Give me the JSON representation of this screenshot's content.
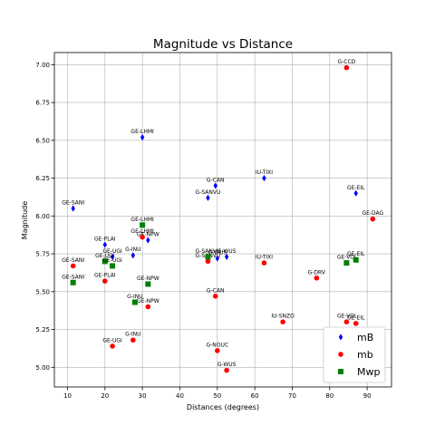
{
  "chart_data": {
    "type": "scatter",
    "title": "Magnitude vs Distance",
    "xlabel": "Distances (degrees)",
    "ylabel": "Magnitude",
    "xlim": [
      6.5,
      96.5
    ],
    "ylim": [
      4.87,
      7.08
    ],
    "xticks": [
      10,
      20,
      30,
      40,
      50,
      60,
      70,
      80,
      90
    ],
    "yticks": [
      5.0,
      5.25,
      5.5,
      5.75,
      6.0,
      6.25,
      6.5,
      6.75,
      7.0
    ],
    "xtick_labels": [
      "10",
      "20",
      "30",
      "40",
      "50",
      "60",
      "70",
      "80",
      "90"
    ],
    "ytick_labels": [
      "5.00",
      "5.25",
      "5.50",
      "5.75",
      "6.00",
      "6.25",
      "6.50",
      "6.75",
      "7.00"
    ],
    "grid": true,
    "legend_position": "bottom-right",
    "series": [
      {
        "name": "mB",
        "color": "#0000ff",
        "marker": "diamond",
        "points": [
          {
            "x": 30.0,
            "y": 6.52,
            "label": "GE-LHMI"
          },
          {
            "x": 62.5,
            "y": 6.25,
            "label": "IU-TIXI"
          },
          {
            "x": 49.5,
            "y": 6.2,
            "label": "G-CAN"
          },
          {
            "x": 47.5,
            "y": 6.12,
            "label": "G-SANVU"
          },
          {
            "x": 87.0,
            "y": 6.15,
            "label": "GE-EIL"
          },
          {
            "x": 11.5,
            "y": 6.05,
            "label": "GE-SANI"
          },
          {
            "x": 31.5,
            "y": 5.84,
            "label": "GE-NPW"
          },
          {
            "x": 20.0,
            "y": 5.81,
            "label": "GE-PLAI"
          },
          {
            "x": 22.0,
            "y": 5.73,
            "label": "GE-UGI"
          },
          {
            "x": 27.5,
            "y": 5.74,
            "label": "G-INU"
          },
          {
            "x": 50.0,
            "y": 5.72,
            "label": "G-WUS"
          },
          {
            "x": 52.5,
            "y": 5.73,
            "label": "G-WUS"
          }
        ]
      },
      {
        "name": "mb",
        "color": "#ff0000",
        "marker": "circle",
        "points": [
          {
            "x": 84.5,
            "y": 6.98,
            "label": "G-CCD"
          },
          {
            "x": 91.5,
            "y": 5.98,
            "label": "GE-DAG"
          },
          {
            "x": 30.0,
            "y": 5.86,
            "label": "GE-LHMI"
          },
          {
            "x": 11.5,
            "y": 5.67,
            "label": "GE-SANI"
          },
          {
            "x": 47.5,
            "y": 5.7,
            "label": "G-SANVU"
          },
          {
            "x": 62.5,
            "y": 5.69,
            "label": "IU-TIXI"
          },
          {
            "x": 20.0,
            "y": 5.57,
            "label": "GE-PLAI"
          },
          {
            "x": 76.5,
            "y": 5.59,
            "label": "G-DRV"
          },
          {
            "x": 49.5,
            "y": 5.47,
            "label": "G-CAN"
          },
          {
            "x": 31.5,
            "y": 5.4,
            "label": "GE-NPW"
          },
          {
            "x": 67.5,
            "y": 5.3,
            "label": "IU-SNZO"
          },
          {
            "x": 84.5,
            "y": 5.3,
            "label": "GE-VOI"
          },
          {
            "x": 87.0,
            "y": 5.29,
            "label": "GE-EIL"
          },
          {
            "x": 27.5,
            "y": 5.18,
            "label": "G-INU"
          },
          {
            "x": 22.0,
            "y": 5.14,
            "label": "GE-UGI"
          },
          {
            "x": 50.0,
            "y": 5.11,
            "label": "G-NOUC"
          },
          {
            "x": 52.5,
            "y": 4.98,
            "label": "G-WUS"
          }
        ]
      },
      {
        "name": "Mwp",
        "color": "#008000",
        "marker": "square",
        "points": [
          {
            "x": 30.0,
            "y": 5.94,
            "label": "GE-LHMI"
          },
          {
            "x": 20.0,
            "y": 5.7,
            "label": "GE-UGI"
          },
          {
            "x": 22.0,
            "y": 5.67,
            "label": "GE-UGI"
          },
          {
            "x": 47.5,
            "y": 5.73,
            "label": "G-SANVU"
          },
          {
            "x": 84.5,
            "y": 5.69,
            "label": "GE-VOI"
          },
          {
            "x": 87.0,
            "y": 5.71,
            "label": "GE-EIL"
          },
          {
            "x": 11.5,
            "y": 5.56,
            "label": "GE-SANI"
          },
          {
            "x": 31.5,
            "y": 5.55,
            "label": "GE-NPW"
          },
          {
            "x": 28.0,
            "y": 5.43,
            "label": "G-INU"
          }
        ]
      }
    ]
  }
}
